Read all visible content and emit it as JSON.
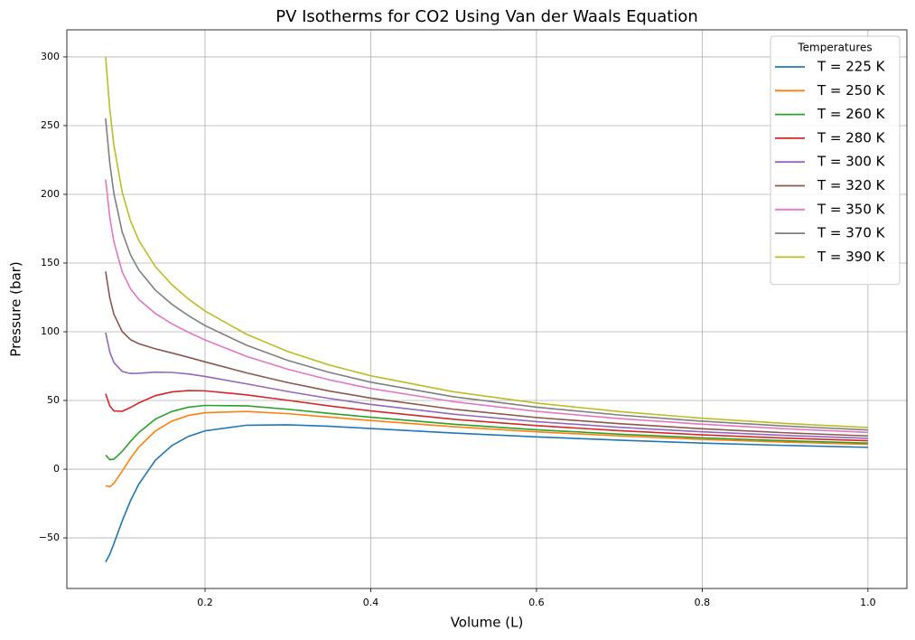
{
  "chart_data": {
    "type": "line",
    "title": "PV Isotherms for CO2 Using Van der Waals Equation",
    "x_label": "Volume (L)",
    "y_label": "Pressure (bar)",
    "legend_title": "Temperatures",
    "legend_position": "upper right",
    "grid": true,
    "x": [
      0.08,
      0.085,
      0.09,
      0.1,
      0.11,
      0.12,
      0.14,
      0.16,
      0.18,
      0.2,
      0.25,
      0.3,
      0.35,
      0.4,
      0.5,
      0.6,
      0.7,
      0.8,
      0.9,
      1.0
    ],
    "xlim": [
      0.0332,
      1.047
    ],
    "xticks": [
      0.2,
      0.4,
      0.6,
      0.8,
      {
        "value": 1.0,
        "label": "1.0"
      }
    ],
    "ylim": [
      -86.8,
      319.7
    ],
    "yticks": [
      {
        "value": -50,
        "label": "−50"
      },
      0,
      50,
      100,
      150,
      200,
      250,
      300
    ],
    "series": [
      {
        "name": "T = 225 K",
        "color": "#1f77b4",
        "values": [
          -67.6,
          -61.9,
          -54.2,
          -37.7,
          -23.0,
          -10.9,
          6.5,
          17.2,
          23.9,
          27.9,
          32.0,
          32.3,
          31.2,
          29.6,
          26.3,
          23.5,
          21.1,
          19.0,
          17.3,
          15.9
        ]
      },
      {
        "name": "T = 250 K",
        "color": "#ff7f0e",
        "values": [
          -12.0,
          -12.8,
          -10.3,
          -1.4,
          7.9,
          16.0,
          27.8,
          35.0,
          39.1,
          41.1,
          42.0,
          40.4,
          37.9,
          35.4,
          30.9,
          27.2,
          24.2,
          21.7,
          19.7,
          18.1
        ]
      },
      {
        "name": "T = 260 K",
        "color": "#2ca02c",
        "values": [
          10.3,
          6.9,
          7.3,
          13.0,
          20.2,
          26.7,
          36.4,
          42.0,
          45.1,
          46.4,
          46.1,
          43.6,
          40.6,
          37.8,
          32.7,
          28.7,
          25.5,
          22.8,
          20.7,
          19.0
        ]
      },
      {
        "name": "T = 280 K",
        "color": "#d62728",
        "values": [
          54.9,
          46.1,
          42.4,
          42.1,
          44.9,
          48.2,
          53.5,
          56.2,
          57.2,
          57.0,
          54.1,
          50.1,
          46.0,
          42.4,
          36.3,
          31.7,
          28.0,
          25.0,
          22.6,
          20.7
        ]
      },
      {
        "name": "T = 300 K",
        "color": "#9467bd",
        "values": [
          99.4,
          85.4,
          77.6,
          71.1,
          69.6,
          69.8,
          70.6,
          70.4,
          69.3,
          67.5,
          62.1,
          56.5,
          51.5,
          47.1,
          40.0,
          34.6,
          30.5,
          27.2,
          24.6,
          22.4
        ]
      },
      {
        "name": "T = 320 K",
        "color": "#8c564b",
        "values": [
          143.9,
          124.7,
          112.7,
          100.1,
          94.3,
          91.3,
          87.6,
          84.6,
          81.4,
          78.1,
          70.1,
          63.0,
          56.9,
          51.7,
          43.6,
          37.6,
          33.1,
          29.4,
          26.5,
          24.2
        ]
      },
      {
        "name": "T = 350 K",
        "color": "#e377c2",
        "values": [
          210.8,
          183.6,
          165.4,
          143.6,
          131.4,
          123.5,
          113.3,
          105.8,
          99.6,
          94.0,
          82.1,
          72.7,
          65.0,
          58.7,
          49.1,
          42.1,
          36.8,
          32.7,
          29.4,
          26.8
        ]
      },
      {
        "name": "T = 370 K",
        "color": "#7f7f7f",
        "values": [
          255.3,
          222.9,
          200.5,
          172.6,
          156.1,
          145.0,
          130.3,
          120.0,
          111.7,
          104.5,
          90.2,
          79.1,
          70.4,
          63.3,
          52.7,
          45.1,
          39.4,
          34.9,
          31.4,
          28.5
        ]
      },
      {
        "name": "T = 390 K",
        "color": "#bcbd22",
        "values": [
          299.9,
          262.2,
          235.7,
          201.6,
          180.8,
          166.5,
          147.4,
          134.2,
          123.8,
          115.1,
          98.2,
          85.6,
          75.8,
          68.0,
          56.3,
          48.1,
          41.9,
          37.1,
          33.3,
          30.3
        ]
      }
    ]
  }
}
